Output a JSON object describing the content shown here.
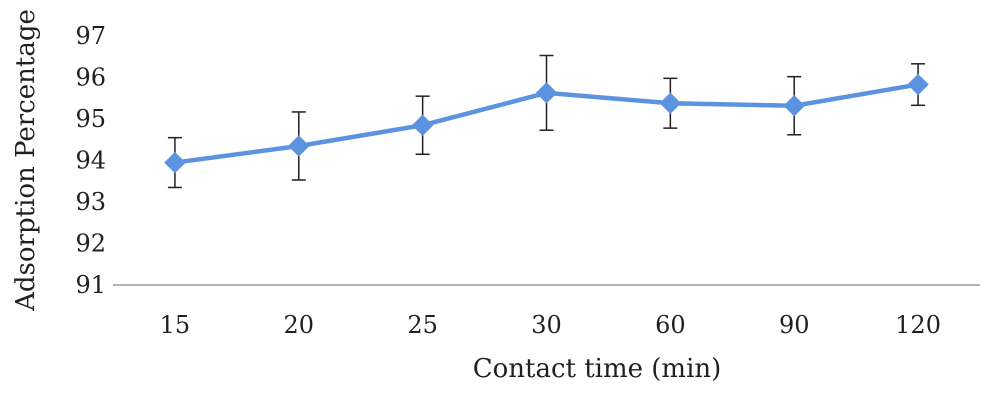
{
  "chart_data": {
    "type": "line",
    "title": "",
    "xlabel": "Contact time (min)",
    "ylabel": "Adsorption Percentage",
    "categories": [
      "15",
      "20",
      "25",
      "30",
      "60",
      "90",
      "120"
    ],
    "series": [
      {
        "values": [
          93.95,
          94.35,
          94.85,
          95.63,
          95.38,
          95.32,
          95.83
        ],
        "error": [
          0.6,
          0.82,
          0.7,
          0.9,
          0.6,
          0.7,
          0.5
        ]
      }
    ],
    "ylim": [
      91,
      97
    ],
    "yticks": [
      "91",
      "92",
      "93",
      "94",
      "95",
      "96",
      "97"
    ],
    "grid": false,
    "legend": "none",
    "colors": {
      "series": "#5b93e0",
      "error_bars": "#231f20",
      "axis": "#9a9a9a",
      "text": "#231f20"
    }
  }
}
